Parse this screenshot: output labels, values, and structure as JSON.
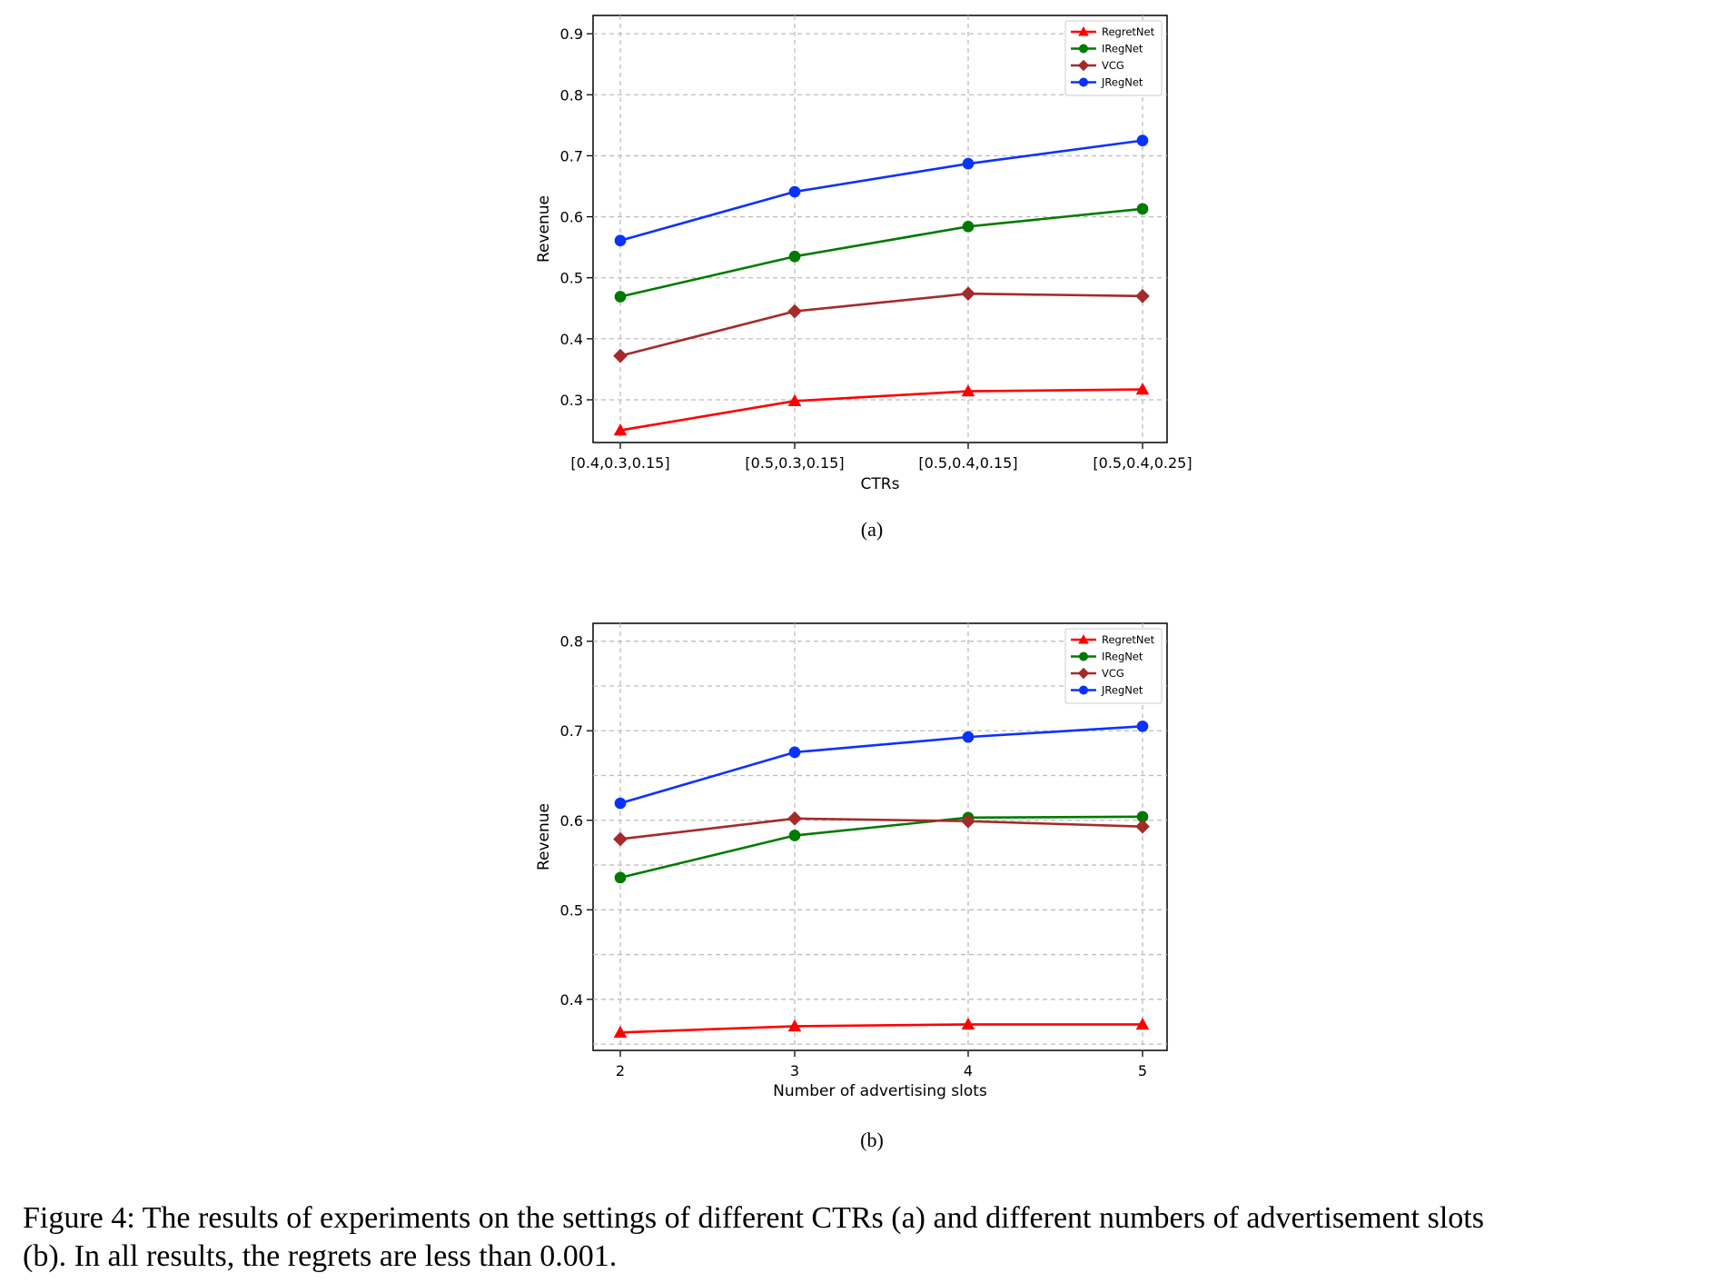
{
  "chart_data": [
    {
      "type": "line",
      "panel_label": "(a)",
      "xlabel": "CTRs",
      "ylabel": "Revenue",
      "categories": [
        "[0.4,0.3,0.15]",
        "[0.5,0.3,0.15]",
        "[0.5,0.4,0.15]",
        "[0.5,0.4,0.25]"
      ],
      "ylim": [
        0.23,
        0.93
      ],
      "yticks": [
        0.3,
        0.4,
        0.5,
        0.6,
        0.7,
        0.8,
        0.9
      ],
      "ytick_labels": [
        "0.3",
        "0.4",
        "0.5",
        "0.6",
        "0.7",
        "0.8",
        "0.9"
      ],
      "grid": true,
      "legend_position": "top-right",
      "series": [
        {
          "name": "RegretNet",
          "color": "#ff0000",
          "marker": "triangle",
          "values": [
            0.25,
            0.298,
            0.314,
            0.317
          ]
        },
        {
          "name": "IRegNet",
          "color": "#007a00",
          "marker": "circle",
          "values": [
            0.469,
            0.535,
            0.584,
            0.613
          ]
        },
        {
          "name": "VCG",
          "color": "#a52a2a",
          "marker": "diamond",
          "values": [
            0.372,
            0.445,
            0.474,
            0.47
          ]
        },
        {
          "name": "JRegNet",
          "color": "#0a32ff",
          "marker": "circle",
          "values": [
            0.561,
            0.641,
            0.687,
            0.725
          ]
        }
      ]
    },
    {
      "type": "line",
      "panel_label": "(b)",
      "xlabel": "Number of advertising slots",
      "ylabel": "Revenue",
      "categories": [
        "2",
        "3",
        "4",
        "5"
      ],
      "ylim": [
        0.343,
        0.82
      ],
      "yticks": [
        0.4,
        0.5,
        0.6,
        0.7,
        0.8
      ],
      "ytick_labels": [
        "0.4",
        "0.5",
        "0.6",
        "0.7",
        "0.8"
      ],
      "minor_gridlines": [
        0.35,
        0.45,
        0.55,
        0.65,
        0.75
      ],
      "grid": true,
      "legend_position": "top-right",
      "series": [
        {
          "name": "RegretNet",
          "color": "#ff0000",
          "marker": "triangle",
          "values": [
            0.363,
            0.37,
            0.372,
            0.372
          ]
        },
        {
          "name": "IRegNet",
          "color": "#007a00",
          "marker": "circle",
          "values": [
            0.536,
            0.583,
            0.603,
            0.604
          ]
        },
        {
          "name": "VCG",
          "color": "#a52a2a",
          "marker": "diamond",
          "values": [
            0.579,
            0.602,
            0.599,
            0.593
          ]
        },
        {
          "name": "JRegNet",
          "color": "#0a32ff",
          "marker": "circle",
          "values": [
            0.619,
            0.676,
            0.693,
            0.705
          ]
        }
      ]
    }
  ],
  "caption": {
    "line1": "Figure 4: The results of experiments on the settings of different CTRs (a) and different numbers of advertisement slots",
    "line2": "(b). In all results, the regrets are less than 0.001."
  }
}
